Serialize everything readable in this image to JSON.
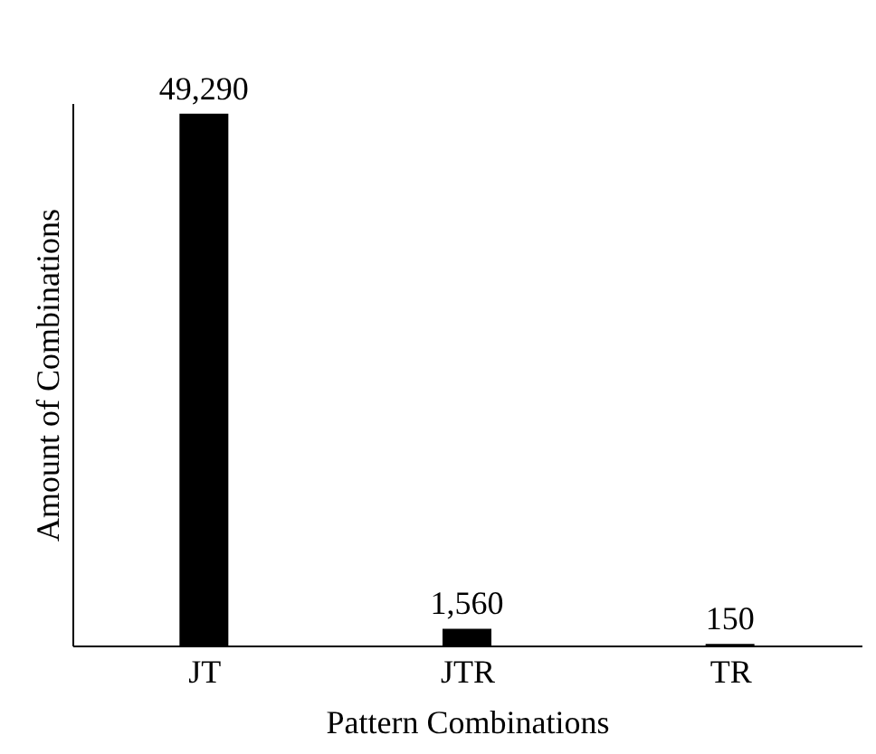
{
  "chart_data": {
    "type": "bar",
    "xlabel": "Pattern Combinations",
    "ylabel": "Amount of Combinations",
    "categories": [
      "JT",
      "JTR",
      "TR"
    ],
    "values": [
      49290,
      1560,
      150
    ],
    "color": "#000000",
    "data_labels": true,
    "value_labels": [
      "49,290",
      "1,560",
      "150"
    ]
  }
}
